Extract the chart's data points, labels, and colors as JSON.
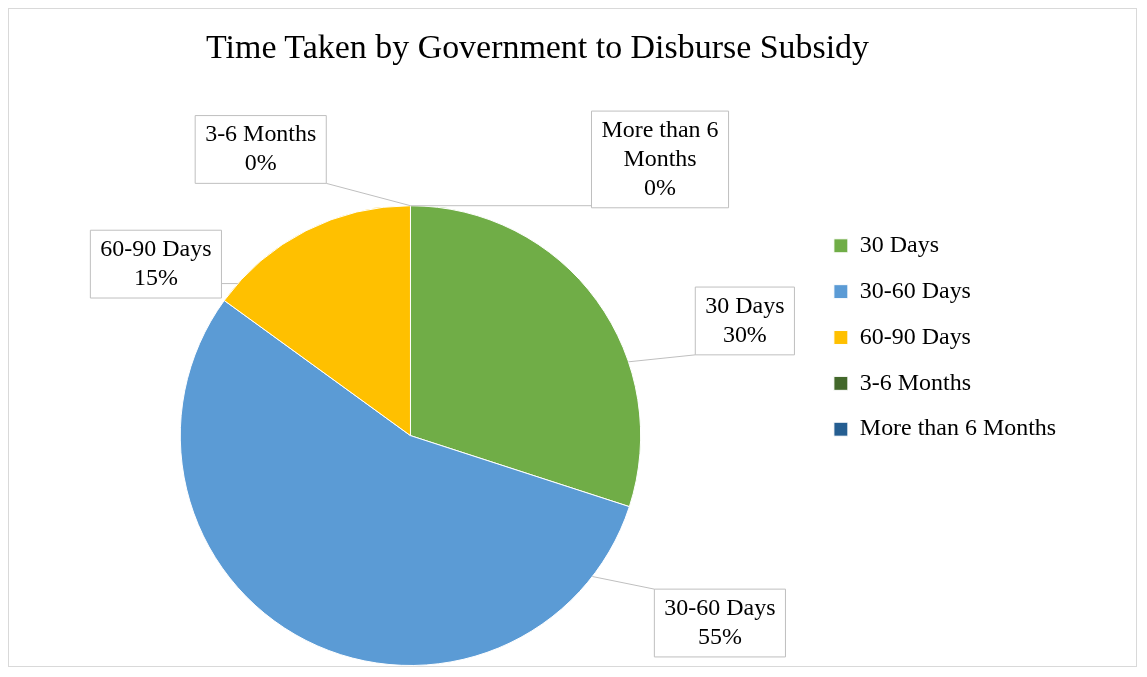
{
  "chart_data": {
    "type": "pie",
    "title": "Time Taken by Government to Disburse Subsidy",
    "categories": [
      "30 Days",
      "30-60 Days",
      "60-90 Days",
      "3-6 Months",
      "More than 6 Months"
    ],
    "values": [
      30,
      55,
      15,
      0,
      0
    ],
    "colors": [
      "#70ad47",
      "#5b9bd5",
      "#ffc000",
      "#43682b",
      "#255e91"
    ],
    "value_labels": [
      "30%",
      "55%",
      "15%",
      "0%",
      "0%"
    ],
    "legend": "right"
  }
}
